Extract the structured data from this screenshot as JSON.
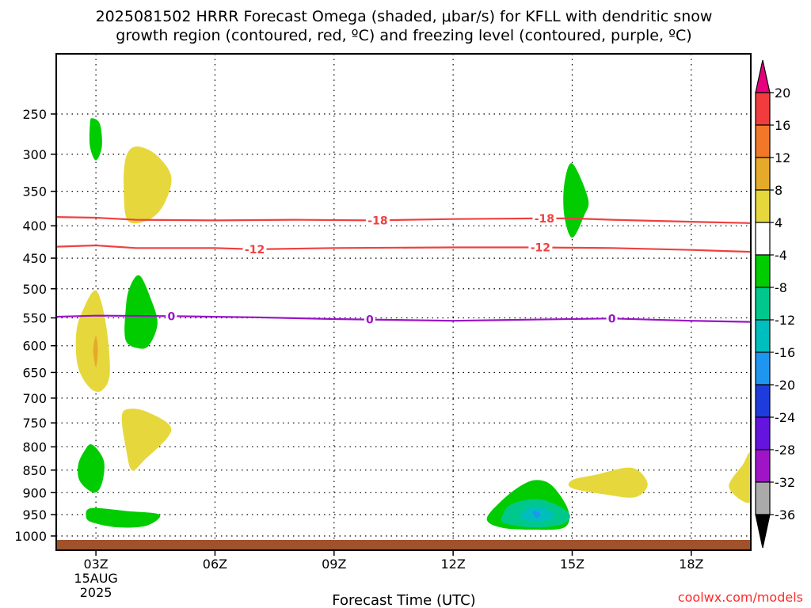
{
  "chart_data": {
    "type": "contour",
    "title_line1": "2025081502 HRRR Forecast Omega (shaded, μbar/s) for KFLL with dendritic snow",
    "title_line2": "growth region (contoured, red, ºC) and freezing level (contoured, purple, ºC)",
    "xlabel": "Forecast Time (UTC)",
    "x_ticks": [
      {
        "hour": 3,
        "label": "03Z",
        "sub1": "15AUG",
        "sub2": "2025"
      },
      {
        "hour": 6,
        "label": "06Z"
      },
      {
        "hour": 9,
        "label": "09Z"
      },
      {
        "hour": 12,
        "label": "12Z"
      },
      {
        "hour": 15,
        "label": "15Z"
      },
      {
        "hour": 18,
        "label": "18Z"
      }
    ],
    "xlim": [
      2,
      19.5
    ],
    "y_ticks": [
      {
        "value": 250,
        "label": "250"
      },
      {
        "value": 300,
        "label": "300"
      },
      {
        "value": 350,
        "label": "350"
      },
      {
        "value": 400,
        "label": "400"
      },
      {
        "value": 450,
        "label": "450"
      },
      {
        "value": 500,
        "label": "500"
      },
      {
        "value": 550,
        "label": "550"
      },
      {
        "value": 600,
        "label": "600"
      },
      {
        "value": 650,
        "label": "650"
      },
      {
        "value": 700,
        "label": "700"
      },
      {
        "value": 750,
        "label": "750"
      },
      {
        "value": 800,
        "label": "800"
      },
      {
        "value": 850,
        "label": "850"
      },
      {
        "value": 900,
        "label": "900"
      },
      {
        "value": 950,
        "label": "950"
      },
      {
        "value": 1000,
        "label": "1000"
      }
    ],
    "ylim_hpa": [
      195,
      1020
    ],
    "grid": true,
    "colorbar": {
      "position": "right",
      "bins": [
        {
          "color": "#e6007e"
        },
        {
          "color": "#f03c3c"
        },
        {
          "color": "#f07828"
        },
        {
          "color": "#e6aa2a"
        },
        {
          "color": "#e6d83c"
        },
        {
          "color": "#ffffff"
        },
        {
          "color": "#00cc00"
        },
        {
          "color": "#00c88c"
        },
        {
          "color": "#00bebe"
        },
        {
          "color": "#1e96f0"
        },
        {
          "color": "#1e3cdc"
        },
        {
          "color": "#6414dc"
        },
        {
          "color": "#a014c8"
        },
        {
          "color": "#aaaaaa"
        },
        {
          "color": "#000000"
        }
      ],
      "labels": [
        "20",
        "16",
        "12",
        "8",
        "4",
        "-4",
        "-8",
        "-12",
        "-16",
        "-20",
        "-24",
        "-28",
        "-32",
        "-36"
      ]
    },
    "contour_lines": [
      {
        "color": "#f04040",
        "labels": [
          "-18",
          "-18"
        ],
        "label_hours": [
          10.1,
          14.3
        ],
        "points": [
          [
            2,
            387
          ],
          [
            3,
            388
          ],
          [
            4,
            391
          ],
          [
            6,
            392
          ],
          [
            8,
            391
          ],
          [
            10,
            392
          ],
          [
            12,
            390
          ],
          [
            14,
            389
          ],
          [
            15,
            389
          ],
          [
            16,
            391
          ],
          [
            18,
            394
          ],
          [
            19.5,
            396
          ]
        ]
      },
      {
        "color": "#f04040",
        "labels": [
          "-12",
          "-12"
        ],
        "label_hours": [
          7.0,
          14.2
        ],
        "points": [
          [
            2,
            432
          ],
          [
            3,
            430
          ],
          [
            4,
            434
          ],
          [
            6,
            434
          ],
          [
            7,
            436
          ],
          [
            9,
            434
          ],
          [
            12,
            433
          ],
          [
            14,
            433
          ],
          [
            16,
            434
          ],
          [
            18,
            437
          ],
          [
            19.5,
            440
          ]
        ]
      },
      {
        "color": "#9a14c8",
        "labels": [
          "0",
          "0",
          "0"
        ],
        "label_hours": [
          4.9,
          9.9,
          16.0
        ],
        "points": [
          [
            2,
            548
          ],
          [
            3,
            546
          ],
          [
            5,
            547
          ],
          [
            7,
            549
          ],
          [
            9,
            552
          ],
          [
            12,
            555
          ],
          [
            14,
            553
          ],
          [
            16,
            551
          ],
          [
            18,
            555
          ],
          [
            19.5,
            557
          ]
        ]
      }
    ],
    "shaded_regions": [
      {
        "color": "#00cc00",
        "pts": [
          [
            2.9,
            255
          ],
          [
            3.1,
            262
          ],
          [
            3.15,
            290
          ],
          [
            3.0,
            308
          ],
          [
            2.85,
            290
          ],
          [
            2.85,
            262
          ]
        ]
      },
      {
        "color": "#e6d83c",
        "pts": [
          [
            4.0,
            290
          ],
          [
            4.5,
            300
          ],
          [
            4.9,
            330
          ],
          [
            4.7,
            370
          ],
          [
            4.3,
            392
          ],
          [
            3.8,
            392
          ],
          [
            3.7,
            345
          ],
          [
            3.75,
            305
          ]
        ]
      },
      {
        "color": "#00cc00",
        "pts": [
          [
            15.0,
            312
          ],
          [
            15.4,
            360
          ],
          [
            15.3,
            385
          ],
          [
            15.0,
            418
          ],
          [
            14.8,
            385
          ],
          [
            14.8,
            340
          ]
        ]
      },
      {
        "color": "#e6d83c",
        "pts": [
          [
            3.0,
            503
          ],
          [
            3.25,
            560
          ],
          [
            3.35,
            650
          ],
          [
            3.15,
            685
          ],
          [
            2.85,
            680
          ],
          [
            2.55,
            640
          ],
          [
            2.5,
            580
          ],
          [
            2.65,
            540
          ]
        ]
      },
      {
        "color": "#e6aa2a",
        "pts": [
          [
            3.0,
            582
          ],
          [
            3.05,
            608
          ],
          [
            3.0,
            640
          ],
          [
            2.93,
            608
          ]
        ]
      },
      {
        "color": "#00cc00",
        "pts": [
          [
            4.1,
            478
          ],
          [
            4.4,
            520
          ],
          [
            4.55,
            560
          ],
          [
            4.35,
            598
          ],
          [
            4.1,
            605
          ],
          [
            3.75,
            590
          ],
          [
            3.75,
            535
          ],
          [
            3.85,
            498
          ]
        ]
      },
      {
        "color": "#e6d83c",
        "pts": [
          [
            3.8,
            722
          ],
          [
            4.3,
            728
          ],
          [
            4.9,
            765
          ],
          [
            4.2,
            830
          ],
          [
            3.9,
            850
          ],
          [
            3.75,
            800
          ],
          [
            3.65,
            740
          ]
        ]
      },
      {
        "color": "#00cc00",
        "pts": [
          [
            2.9,
            795
          ],
          [
            3.2,
            830
          ],
          [
            3.15,
            880
          ],
          [
            2.95,
            900
          ],
          [
            2.6,
            875
          ],
          [
            2.55,
            840
          ],
          [
            2.7,
            810
          ]
        ]
      },
      {
        "color": "#00cc00",
        "pts": [
          [
            2.9,
            935
          ],
          [
            3.8,
            942
          ],
          [
            4.6,
            950
          ],
          [
            4.3,
            975
          ],
          [
            3.6,
            980
          ],
          [
            2.9,
            968
          ],
          [
            2.75,
            952
          ]
        ]
      },
      {
        "color": "#00cc00",
        "pts": [
          [
            14.1,
            872
          ],
          [
            14.5,
            885
          ],
          [
            14.9,
            940
          ],
          [
            14.8,
            980
          ],
          [
            14.0,
            985
          ],
          [
            13.2,
            980
          ],
          [
            12.85,
            960
          ],
          [
            13.2,
            920
          ],
          [
            13.7,
            885
          ]
        ]
      },
      {
        "color": "#00c88c",
        "pts": [
          [
            13.5,
            925
          ],
          [
            14.2,
            915
          ],
          [
            14.9,
            945
          ],
          [
            14.8,
            970
          ],
          [
            14.1,
            980
          ],
          [
            13.3,
            970
          ],
          [
            13.25,
            950
          ]
        ]
      },
      {
        "color": "#00bebe",
        "pts": [
          [
            13.9,
            935
          ],
          [
            14.2,
            932
          ],
          [
            14.55,
            950
          ],
          [
            14.4,
            962
          ],
          [
            14.0,
            965
          ],
          [
            13.7,
            955
          ]
        ]
      },
      {
        "color": "#1e96f0",
        "pts": [
          [
            14.0,
            946
          ],
          [
            14.1,
            942
          ],
          [
            14.2,
            950
          ],
          [
            14.1,
            958
          ]
        ]
      },
      {
        "color": "#e6d83c",
        "pts": [
          [
            15.0,
            872
          ],
          [
            15.6,
            860
          ],
          [
            16.5,
            845
          ],
          [
            16.9,
            880
          ],
          [
            16.6,
            910
          ],
          [
            15.9,
            905
          ],
          [
            15.0,
            890
          ]
        ]
      },
      {
        "color": "#e6d83c",
        "pts": [
          [
            19.5,
            815
          ],
          [
            19.5,
            920
          ],
          [
            18.95,
            888
          ],
          [
            19.3,
            838
          ]
        ]
      }
    ],
    "surface": {
      "color": "#a0522d"
    }
  },
  "footer": {
    "credit": "coolwx.com/models"
  }
}
